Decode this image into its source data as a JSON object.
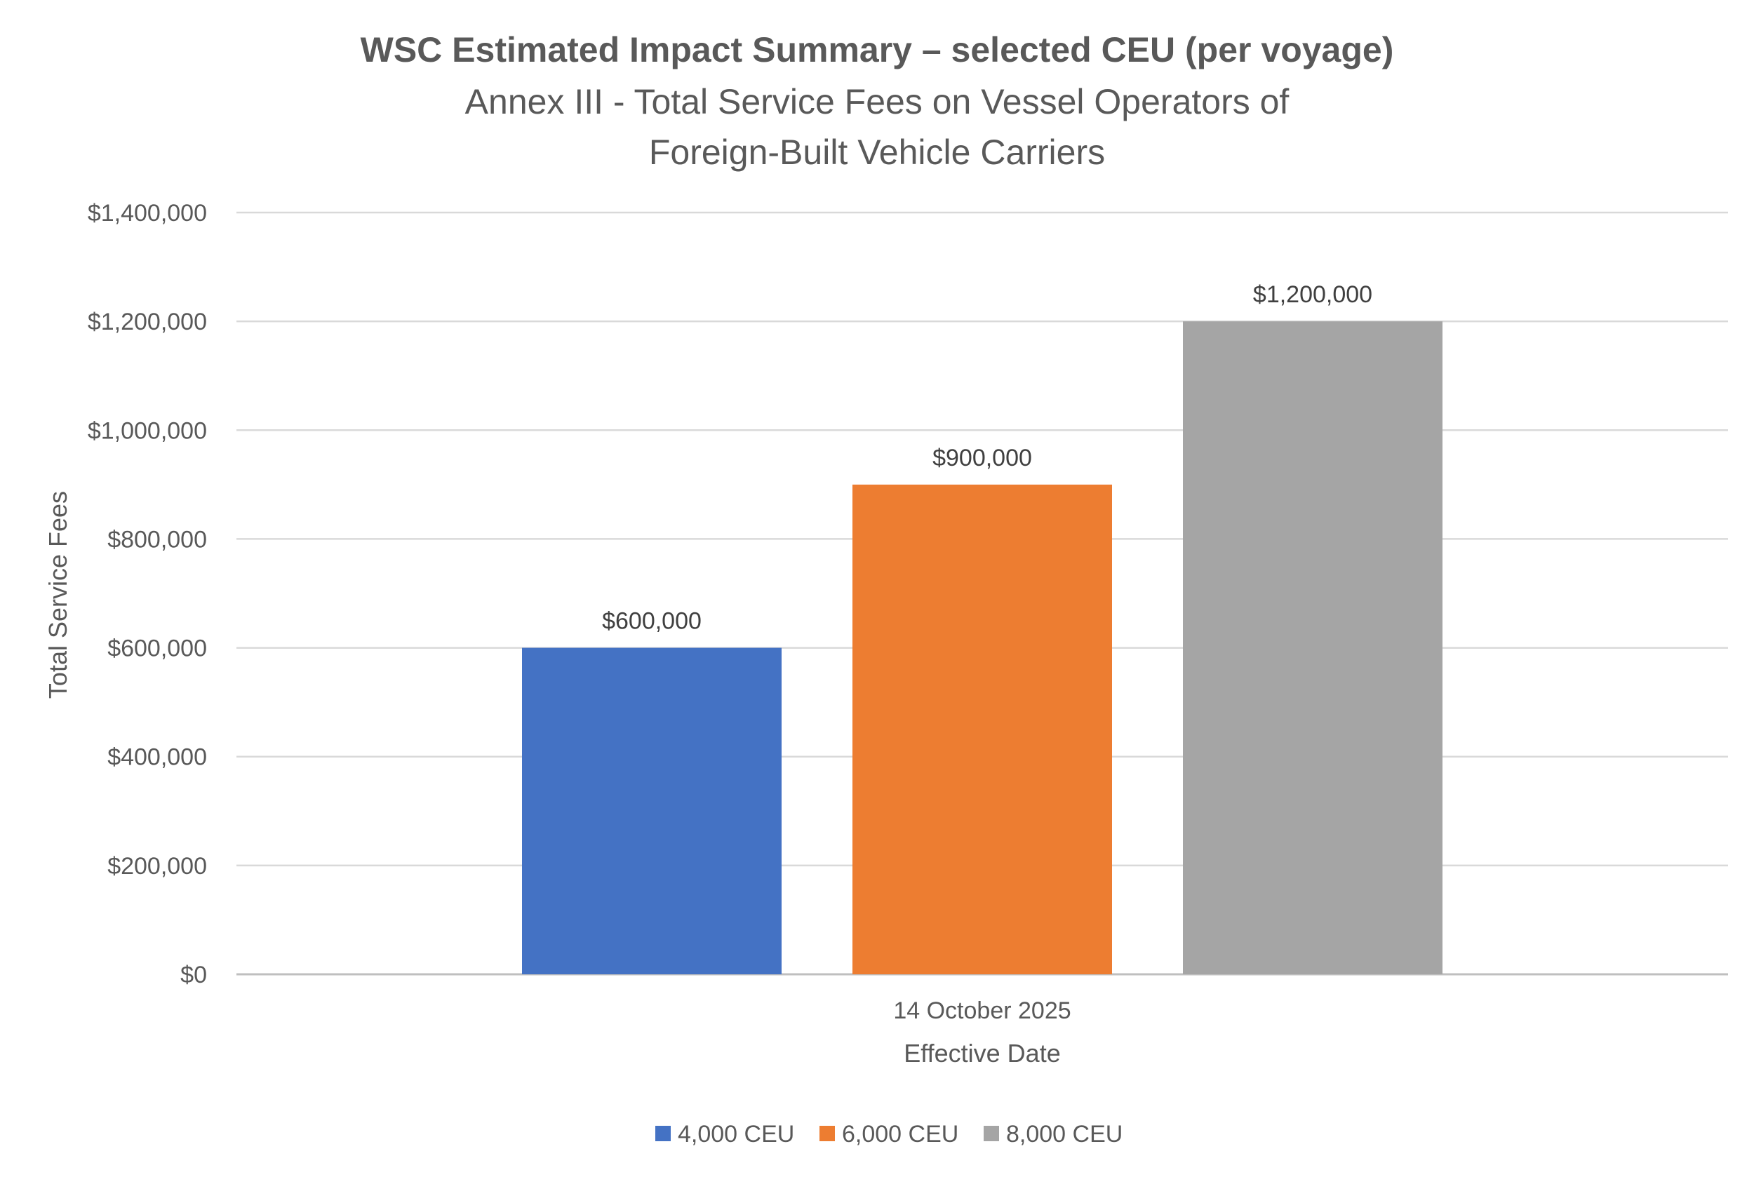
{
  "chart_data": {
    "type": "bar",
    "title": "WSC Estimated Impact Summary – selected CEU (per voyage)",
    "subtitle_lines": [
      "Annex III - Total Service Fees on Vessel Operators of",
      "Foreign-Built Vehicle Carriers"
    ],
    "categories": [
      "14 October 2025"
    ],
    "series": [
      {
        "name": "4,000 CEU",
        "values": [
          600000
        ],
        "color": "#4472C4",
        "label": "$600,000"
      },
      {
        "name": "6,000 CEU",
        "values": [
          900000
        ],
        "color": "#ED7D31",
        "label": "$900,000"
      },
      {
        "name": "8,000 CEU",
        "values": [
          1200000
        ],
        "color": "#A5A5A5",
        "label": "$1,200,000"
      }
    ],
    "xlabel": "Effective Date",
    "ylabel": "Total Service Fees",
    "ylim": [
      0,
      1400000
    ],
    "yticks": [
      0,
      200000,
      400000,
      600000,
      800000,
      1000000,
      1200000,
      1400000
    ],
    "ytick_labels": [
      "$0",
      "$200,000",
      "$400,000",
      "$600,000",
      "$800,000",
      "$1,000,000",
      "$1,200,000",
      "$1,400,000"
    ],
    "grid": true,
    "legend_position": "bottom"
  }
}
